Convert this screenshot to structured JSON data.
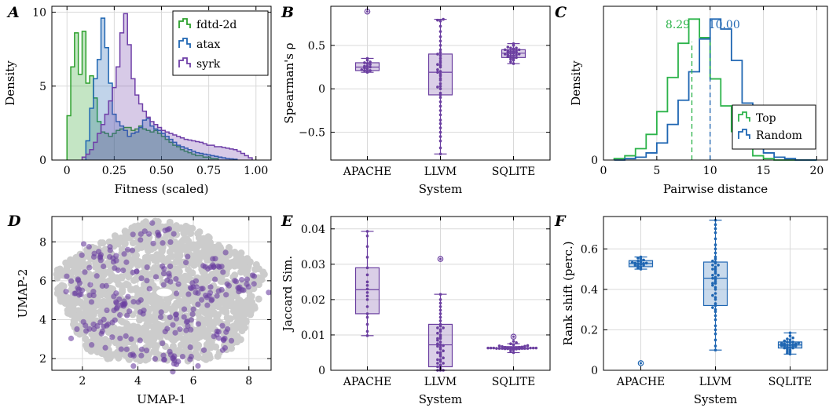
{
  "colors": {
    "fdtd": "#2ca02c",
    "atax": "#1f66b2",
    "syrk": "#6f3fa8",
    "top": "#2cb34a",
    "random": "#1f66b2",
    "purple": "#6b3fa0",
    "blue": "#1f66b2",
    "gray_points": "#cccccc",
    "grid": "#d9d9d9"
  },
  "chart_data": [
    {
      "panel": "A",
      "type": "area",
      "chart_kind": "step histogram (density)",
      "xlabel": "Fitness (scaled)",
      "ylabel": "Density",
      "xlim": [
        -0.08,
        1.08
      ],
      "ylim": [
        0,
        10.4
      ],
      "xticks": [
        0,
        0.25,
        0.5,
        0.75,
        1.0
      ],
      "xtick_labels": [
        "0",
        "0.25",
        "0.50",
        "0.75",
        "1.00"
      ],
      "yticks": [
        0,
        5,
        10
      ],
      "grid": true,
      "legend_position": "top-right",
      "bin_width": 0.02,
      "series": [
        {
          "name": "fdtd-2d",
          "color_key": "fdtd",
          "x0": 0.0,
          "values": [
            3.0,
            6.3,
            8.6,
            5.8,
            8.7,
            5.2,
            5.7,
            4.2,
            2.6,
            1.9,
            1.8,
            1.6,
            1.8,
            2.0,
            2.1,
            2.2,
            2.2,
            2.0,
            2.1,
            2.3,
            2.1,
            2.0,
            1.9,
            2.0,
            1.8,
            1.6,
            1.4,
            1.2,
            1.0,
            0.9,
            0.7,
            0.6,
            0.5,
            0.4,
            0.3,
            0.3,
            0.2,
            0.2,
            0.1,
            0.1
          ]
        },
        {
          "name": "atax",
          "color_key": "atax",
          "x0": 0.1,
          "values": [
            1.3,
            3.5,
            5.5,
            6.8,
            9.6,
            7.6,
            5.2,
            3.1,
            2.6,
            2.3,
            2.0,
            1.6,
            1.8,
            1.9,
            2.2,
            2.7,
            2.8,
            2.3,
            2.1,
            2.0,
            1.8,
            1.6,
            1.4,
            1.2,
            1.0,
            0.9,
            0.8,
            0.7,
            0.6,
            0.5,
            0.45,
            0.4,
            0.35,
            0.3,
            0.25,
            0.2,
            0.15,
            0.1,
            0.08,
            0.05
          ]
        },
        {
          "name": "syrk",
          "color_key": "syrk",
          "x0": 0.08,
          "values": [
            0.2,
            0.4,
            0.7,
            1.2,
            1.8,
            2.4,
            3.1,
            4.0,
            4.9,
            6.3,
            8.6,
            9.9,
            7.8,
            5.5,
            4.4,
            3.8,
            3.3,
            2.9,
            2.6,
            2.4,
            2.2,
            2.0,
            1.9,
            1.8,
            1.7,
            1.6,
            1.5,
            1.4,
            1.35,
            1.3,
            1.25,
            1.2,
            1.1,
            1.0,
            1.0,
            0.9,
            0.9,
            0.85,
            0.8,
            0.75,
            0.7,
            0.6,
            0.45,
            0.3,
            0.15
          ]
        }
      ]
    },
    {
      "panel": "B",
      "type": "scatter",
      "chart_kind": "box plot with strip points",
      "xlabel": "System",
      "ylabel": "Spearman's ρ",
      "categories": [
        "APACHE",
        "LLVM",
        "SQLITE"
      ],
      "ylim": [
        -0.82,
        0.95
      ],
      "yticks": [
        -0.5,
        0,
        0.5
      ],
      "ytick_labels": [
        "−0.5",
        "0",
        "0.5"
      ],
      "grid": true,
      "boxes": [
        {
          "category": "APACHE",
          "q1": 0.21,
          "median": 0.25,
          "q3": 0.3,
          "whisker_low": 0.19,
          "whisker_high": 0.35,
          "outliers": [
            0.89
          ],
          "points": [
            0.19,
            0.2,
            0.21,
            0.22,
            0.23,
            0.24,
            0.25,
            0.26,
            0.28,
            0.29,
            0.31,
            0.33,
            0.35,
            0.26,
            0.3,
            0.21
          ]
        },
        {
          "category": "LLVM",
          "q1": -0.07,
          "median": 0.19,
          "q3": 0.4,
          "whisker_low": -0.75,
          "whisker_high": 0.8,
          "outliers": [],
          "points": [
            -0.75,
            -0.68,
            -0.6,
            -0.55,
            -0.5,
            -0.45,
            -0.4,
            -0.36,
            -0.3,
            -0.25,
            -0.2,
            -0.15,
            -0.1,
            -0.07,
            -0.05,
            0.0,
            0.03,
            0.06,
            0.1,
            0.12,
            0.15,
            0.17,
            0.19,
            0.2,
            0.22,
            0.25,
            0.27,
            0.3,
            0.32,
            0.35,
            0.38,
            0.4,
            0.42,
            0.45,
            0.5,
            0.55,
            0.6,
            0.66,
            0.72,
            0.78,
            0.8,
            0.79,
            0.02,
            0.28
          ]
        },
        {
          "category": "SQLITE",
          "q1": 0.36,
          "median": 0.41,
          "q3": 0.45,
          "whisker_low": 0.29,
          "whisker_high": 0.52,
          "outliers": [],
          "points": [
            0.29,
            0.31,
            0.33,
            0.34,
            0.35,
            0.36,
            0.37,
            0.38,
            0.39,
            0.4,
            0.41,
            0.41,
            0.42,
            0.43,
            0.44,
            0.45,
            0.46,
            0.47,
            0.48,
            0.5,
            0.52,
            0.38,
            0.42,
            0.44,
            0.36,
            0.4,
            0.43,
            0.39,
            0.45,
            0.47
          ]
        }
      ]
    },
    {
      "panel": "C",
      "type": "line",
      "chart_kind": "step histogram with mean lines",
      "xlabel": "Pairwise distance",
      "ylabel": "Density",
      "xlim": [
        0,
        21
      ],
      "xticks": [
        0,
        5,
        10,
        15,
        20
      ],
      "yticks": [
        0
      ],
      "ylim": [
        0,
        1.08
      ],
      "grid": true,
      "legend_position": "lower-right",
      "bin_width": 1,
      "series": [
        {
          "name": "Top",
          "color_key": "top",
          "mean": 8.29,
          "mean_label": "8.29",
          "x0": 1,
          "values": [
            0.01,
            0.03,
            0.08,
            0.18,
            0.34,
            0.58,
            0.82,
            0.99,
            0.86,
            0.57,
            0.38,
            0.2,
            0.08,
            0.03,
            0.01,
            0.0,
            0.0,
            0.0,
            0.0
          ]
        },
        {
          "name": "Random",
          "color_key": "random",
          "mean": 10.0,
          "mean_label": "10.00",
          "x0": 1,
          "values": [
            0.0,
            0.01,
            0.02,
            0.05,
            0.12,
            0.25,
            0.42,
            0.62,
            0.85,
            0.99,
            0.92,
            0.7,
            0.4,
            0.15,
            0.05,
            0.02,
            0.01,
            0.0,
            0.0
          ]
        }
      ]
    },
    {
      "panel": "D",
      "type": "scatter",
      "chart_kind": "UMAP embedding (background + highlighted)",
      "xlabel": "UMAP-1",
      "ylabel": "UMAP-2",
      "xlim": [
        0.9,
        8.8
      ],
      "ylim": [
        1.4,
        9.3
      ],
      "xticks": [
        2,
        4,
        6,
        8
      ],
      "yticks": [
        2,
        4,
        6,
        8
      ],
      "grid": true,
      "background_ellipse": {
        "cx": 4.8,
        "cy": 5.3,
        "rx": 3.7,
        "ry": 3.6
      },
      "clusters": [
        {
          "x": 1.8,
          "y": 5.6,
          "n": 22,
          "spread": 0.45
        },
        {
          "x": 2.8,
          "y": 7.2,
          "n": 26,
          "spread": 0.45
        },
        {
          "x": 4.6,
          "y": 8.4,
          "n": 16,
          "spread": 0.4
        },
        {
          "x": 4.6,
          "y": 6.3,
          "n": 18,
          "spread": 0.4
        },
        {
          "x": 6.6,
          "y": 6.8,
          "n": 16,
          "spread": 0.4
        },
        {
          "x": 6.4,
          "y": 5.3,
          "n": 28,
          "spread": 0.45
        },
        {
          "x": 7.8,
          "y": 5.7,
          "n": 18,
          "spread": 0.4
        },
        {
          "x": 3.6,
          "y": 4.8,
          "n": 24,
          "spread": 0.45
        },
        {
          "x": 2.6,
          "y": 3.5,
          "n": 24,
          "spread": 0.45
        },
        {
          "x": 5.6,
          "y": 4.0,
          "n": 22,
          "spread": 0.4
        },
        {
          "x": 5.2,
          "y": 2.0,
          "n": 22,
          "spread": 0.45
        },
        {
          "x": 7.0,
          "y": 3.2,
          "n": 14,
          "spread": 0.4
        },
        {
          "x": 4.0,
          "y": 2.5,
          "n": 10,
          "spread": 0.35
        }
      ]
    },
    {
      "panel": "E",
      "type": "scatter",
      "chart_kind": "box plot with strip points",
      "xlabel": "System",
      "ylabel": "Jaccard Sim.",
      "categories": [
        "APACHE",
        "LLVM",
        "SQLITE"
      ],
      "ylim": [
        0,
        0.0435
      ],
      "yticks": [
        0,
        0.01,
        0.02,
        0.03,
        0.04
      ],
      "ytick_labels": [
        "0",
        "0.01",
        "0.02",
        "0.03",
        "0.04"
      ],
      "grid": true,
      "boxes": [
        {
          "category": "APACHE",
          "q1": 0.016,
          "median": 0.0228,
          "q3": 0.029,
          "whisker_low": 0.0098,
          "whisker_high": 0.0393,
          "outliers": [],
          "points": [
            0.0098,
            0.011,
            0.013,
            0.015,
            0.016,
            0.018,
            0.02,
            0.021,
            0.022,
            0.023,
            0.024,
            0.025,
            0.027,
            0.029,
            0.032,
            0.035,
            0.038,
            0.0393
          ]
        },
        {
          "category": "LLVM",
          "q1": 0.001,
          "median": 0.0072,
          "q3": 0.013,
          "whisker_low": 0.0,
          "whisker_high": 0.0215,
          "outliers": [
            0.0315
          ],
          "points": [
            0.0,
            0.0,
            0.0005,
            0.001,
            0.0015,
            0.002,
            0.0025,
            0.003,
            0.0035,
            0.004,
            0.0045,
            0.005,
            0.0055,
            0.006,
            0.0065,
            0.007,
            0.0072,
            0.0075,
            0.008,
            0.0085,
            0.009,
            0.0095,
            0.01,
            0.0105,
            0.011,
            0.0115,
            0.012,
            0.0125,
            0.013,
            0.014,
            0.015,
            0.016,
            0.017,
            0.018,
            0.019,
            0.02,
            0.0215,
            0.0,
            0.001,
            0.003,
            0.005,
            0.009,
            0.012,
            0.002,
            0.0068
          ]
        },
        {
          "category": "SQLITE",
          "q1": 0.006,
          "median": 0.0063,
          "q3": 0.0067,
          "whisker_low": 0.005,
          "whisker_high": 0.0075,
          "outliers": [
            0.0095
          ],
          "points": [
            0.005,
            0.0055,
            0.0058,
            0.006,
            0.006,
            0.0061,
            0.0062,
            0.0062,
            0.0063,
            0.0063,
            0.0063,
            0.0064,
            0.0064,
            0.0065,
            0.0065,
            0.0066,
            0.0067,
            0.0068,
            0.0069,
            0.007,
            0.0072,
            0.0075,
            0.0078,
            0.0082,
            0.0062,
            0.0063,
            0.0061,
            0.0064,
            0.0062,
            0.0063,
            0.0062,
            0.0063,
            0.0064,
            0.0061,
            0.0062
          ]
        }
      ]
    },
    {
      "panel": "F",
      "type": "scatter",
      "chart_kind": "box plot with strip points",
      "xlabel": "System",
      "ylabel": "Rank shift (perc.)",
      "categories": [
        "APACHE",
        "LLVM",
        "SQLITE"
      ],
      "ylim": [
        0,
        0.76
      ],
      "yticks": [
        0,
        0.2,
        0.4,
        0.6
      ],
      "ytick_labels": [
        "0",
        "0.2",
        "0.4",
        "0.6"
      ],
      "grid": true,
      "boxes": [
        {
          "category": "APACHE",
          "q1": 0.512,
          "median": 0.528,
          "q3": 0.542,
          "whisker_low": 0.5,
          "whisker_high": 0.56,
          "outliers": [
            0.035
          ],
          "points": [
            0.5,
            0.505,
            0.51,
            0.515,
            0.52,
            0.523,
            0.526,
            0.528,
            0.53,
            0.533,
            0.536,
            0.54,
            0.545,
            0.55,
            0.555,
            0.56,
            0.52,
            0.53
          ]
        },
        {
          "category": "LLVM",
          "q1": 0.32,
          "median": 0.455,
          "q3": 0.535,
          "whisker_low": 0.1,
          "whisker_high": 0.742,
          "outliers": [],
          "points": [
            0.1,
            0.12,
            0.15,
            0.18,
            0.2,
            0.22,
            0.25,
            0.27,
            0.3,
            0.31,
            0.32,
            0.33,
            0.35,
            0.37,
            0.38,
            0.4,
            0.41,
            0.42,
            0.43,
            0.44,
            0.45,
            0.455,
            0.46,
            0.47,
            0.48,
            0.49,
            0.5,
            0.51,
            0.52,
            0.53,
            0.535,
            0.54,
            0.55,
            0.56,
            0.58,
            0.6,
            0.62,
            0.65,
            0.68,
            0.7,
            0.72,
            0.742,
            0.36,
            0.43,
            0.5,
            0.29,
            0.47,
            0.52
          ]
        },
        {
          "category": "SQLITE",
          "q1": 0.11,
          "median": 0.125,
          "q3": 0.14,
          "whisker_low": 0.08,
          "whisker_high": 0.185,
          "outliers": [],
          "points": [
            0.08,
            0.085,
            0.09,
            0.095,
            0.1,
            0.105,
            0.11,
            0.112,
            0.115,
            0.118,
            0.12,
            0.122,
            0.125,
            0.127,
            0.13,
            0.132,
            0.135,
            0.138,
            0.14,
            0.145,
            0.15,
            0.155,
            0.16,
            0.17,
            0.185,
            0.12,
            0.13,
            0.11,
            0.125,
            0.14
          ]
        }
      ]
    }
  ]
}
